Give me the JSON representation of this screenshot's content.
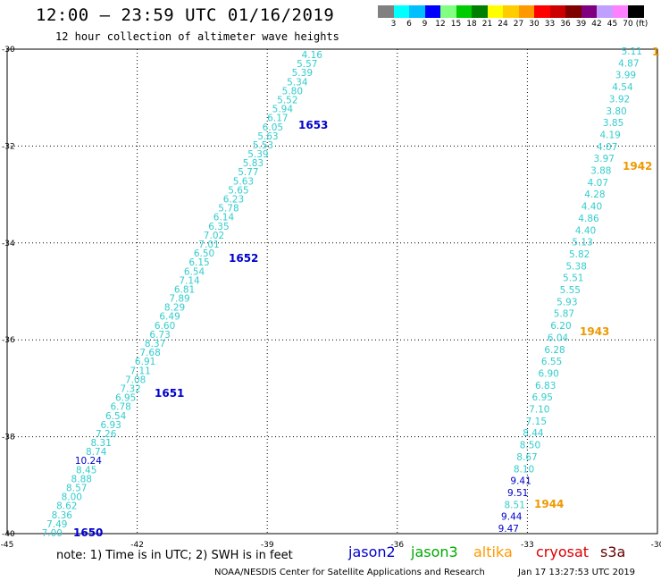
{
  "header": {
    "title": "12:00 – 23:59 UTC 01/16/2019",
    "subtitle": "12 hour collection of altimeter wave heights"
  },
  "scale": {
    "colors": [
      "#808080",
      "#00ffff",
      "#00bfff",
      "#0000ff",
      "#80ff80",
      "#00cc00",
      "#008000",
      "#ffff00",
      "#ffcc00",
      "#ff9900",
      "#ff0000",
      "#cc0000",
      "#800000",
      "#800080",
      "#c0a0ff",
      "#ff80ff",
      "#000000"
    ],
    "labels": [
      "3",
      "6",
      "9",
      "12",
      "15",
      "18",
      "21",
      "24",
      "27",
      "30",
      "33",
      "36",
      "39",
      "42",
      "45",
      "70",
      "(ft)"
    ]
  },
  "axes": {
    "lon_ticks": [
      "-45",
      "-42",
      "-39",
      "-36",
      "-33",
      "-30"
    ],
    "lat_ticks": [
      "-30",
      "-32",
      "-34",
      "-36",
      "-38",
      "-40"
    ]
  },
  "tracks": [
    {
      "name": "west",
      "color": "#33cccc",
      "values": [
        {
          "t": "4.16",
          "c": "#33cccc"
        },
        {
          "t": "5.57",
          "c": "#33cccc"
        },
        {
          "t": "5.39",
          "c": "#33cccc"
        },
        {
          "t": "5.34",
          "c": "#33cccc"
        },
        {
          "t": "5.80",
          "c": "#33cccc"
        },
        {
          "t": "5.52",
          "c": "#33cccc"
        },
        {
          "t": "5.94",
          "c": "#33cccc"
        },
        {
          "t": "6.17",
          "c": "#33cccc"
        },
        {
          "t": "6.05",
          "c": "#33cccc"
        },
        {
          "t": "5.63",
          "c": "#33cccc"
        },
        {
          "t": "5.53",
          "c": "#33cccc"
        },
        {
          "t": "5.39",
          "c": "#33cccc"
        },
        {
          "t": "5.83",
          "c": "#33cccc"
        },
        {
          "t": "5.77",
          "c": "#33cccc"
        },
        {
          "t": "5.63",
          "c": "#33cccc"
        },
        {
          "t": "5.65",
          "c": "#33cccc"
        },
        {
          "t": "6.23",
          "c": "#33cccc"
        },
        {
          "t": "5.78",
          "c": "#33cccc"
        },
        {
          "t": "6.14",
          "c": "#33cccc"
        },
        {
          "t": "6.35",
          "c": "#33cccc"
        },
        {
          "t": "7.02",
          "c": "#33cccc"
        },
        {
          "t": "7.01",
          "c": "#33cccc"
        },
        {
          "t": "6.50",
          "c": "#33cccc"
        },
        {
          "t": "6.15",
          "c": "#33cccc"
        },
        {
          "t": "6.54",
          "c": "#33cccc"
        },
        {
          "t": "7.14",
          "c": "#33cccc"
        },
        {
          "t": "6.81",
          "c": "#33cccc"
        },
        {
          "t": "7.89",
          "c": "#33cccc"
        },
        {
          "t": "8.29",
          "c": "#33cccc"
        },
        {
          "t": "6.49",
          "c": "#33cccc"
        },
        {
          "t": "6.60",
          "c": "#33cccc"
        },
        {
          "t": "6.73",
          "c": "#33cccc"
        },
        {
          "t": "8.37",
          "c": "#33cccc"
        },
        {
          "t": "7.68",
          "c": "#33cccc"
        },
        {
          "t": "6.91",
          "c": "#33cccc"
        },
        {
          "t": "7.11",
          "c": "#33cccc"
        },
        {
          "t": "7.08",
          "c": "#33cccc"
        },
        {
          "t": "7.32",
          "c": "#33cccc"
        },
        {
          "t": "6.95",
          "c": "#33cccc"
        },
        {
          "t": "6.78",
          "c": "#33cccc"
        },
        {
          "t": "6.54",
          "c": "#33cccc"
        },
        {
          "t": "6.93",
          "c": "#33cccc"
        },
        {
          "t": "7.26",
          "c": "#33cccc"
        },
        {
          "t": "8.31",
          "c": "#33cccc"
        },
        {
          "t": "8.74",
          "c": "#33cccc"
        },
        {
          "t": "10.24",
          "c": "#0000cc"
        },
        {
          "t": "8.45",
          "c": "#33cccc"
        },
        {
          "t": "8.88",
          "c": "#33cccc"
        },
        {
          "t": "8.57",
          "c": "#33cccc"
        },
        {
          "t": "8.00",
          "c": "#33cccc"
        },
        {
          "t": "8.62",
          "c": "#33cccc"
        },
        {
          "t": "8.36",
          "c": "#33cccc"
        },
        {
          "t": "7.49",
          "c": "#33cccc"
        },
        {
          "t": "7.00",
          "c": "#33cccc"
        }
      ],
      "times": [
        {
          "t": "1653",
          "c": "#0000cc"
        },
        {
          "t": "1652",
          "c": "#0000cc"
        },
        {
          "t": "1651",
          "c": "#0000cc"
        },
        {
          "t": "1650",
          "c": "#0000cc"
        }
      ]
    },
    {
      "name": "east",
      "color": "#33cccc",
      "values": [
        {
          "t": "5.11",
          "c": "#33cccc"
        },
        {
          "t": "4.87",
          "c": "#33cccc"
        },
        {
          "t": "3.99",
          "c": "#33cccc"
        },
        {
          "t": "4.54",
          "c": "#33cccc"
        },
        {
          "t": "3.92",
          "c": "#33cccc"
        },
        {
          "t": "3.80",
          "c": "#33cccc"
        },
        {
          "t": "3.85",
          "c": "#33cccc"
        },
        {
          "t": "4.19",
          "c": "#33cccc"
        },
        {
          "t": "4.07",
          "c": "#33cccc"
        },
        {
          "t": "3.97",
          "c": "#33cccc"
        },
        {
          "t": "3.88",
          "c": "#33cccc"
        },
        {
          "t": "4.07",
          "c": "#33cccc"
        },
        {
          "t": "4.28",
          "c": "#33cccc"
        },
        {
          "t": "4.40",
          "c": "#33cccc"
        },
        {
          "t": "4.86",
          "c": "#33cccc"
        },
        {
          "t": "4.40",
          "c": "#33cccc"
        },
        {
          "t": "5.13",
          "c": "#33cccc"
        },
        {
          "t": "5.82",
          "c": "#33cccc"
        },
        {
          "t": "5.38",
          "c": "#33cccc"
        },
        {
          "t": "5.51",
          "c": "#33cccc"
        },
        {
          "t": "5.55",
          "c": "#33cccc"
        },
        {
          "t": "5.93",
          "c": "#33cccc"
        },
        {
          "t": "5.87",
          "c": "#33cccc"
        },
        {
          "t": "6.20",
          "c": "#33cccc"
        },
        {
          "t": "6.04",
          "c": "#33cccc"
        },
        {
          "t": "6.28",
          "c": "#33cccc"
        },
        {
          "t": "6.55",
          "c": "#33cccc"
        },
        {
          "t": "6.90",
          "c": "#33cccc"
        },
        {
          "t": "6.83",
          "c": "#33cccc"
        },
        {
          "t": "6.95",
          "c": "#33cccc"
        },
        {
          "t": "7.10",
          "c": "#33cccc"
        },
        {
          "t": "7.15",
          "c": "#33cccc"
        },
        {
          "t": "8.44",
          "c": "#33cccc"
        },
        {
          "t": "8.50",
          "c": "#33cccc"
        },
        {
          "t": "8.67",
          "c": "#33cccc"
        },
        {
          "t": "8.10",
          "c": "#33cccc"
        },
        {
          "t": "9.41",
          "c": "#0000cc"
        },
        {
          "t": "9.51",
          "c": "#0000cc"
        },
        {
          "t": "8.51",
          "c": "#33cccc"
        },
        {
          "t": "9.44",
          "c": "#0000cc"
        },
        {
          "t": "9.47",
          "c": "#0000cc"
        }
      ],
      "times": [
        {
          "t": "1",
          "c": "#ee9900"
        },
        {
          "t": "1942",
          "c": "#ee9900"
        },
        {
          "t": "1943",
          "c": "#ee9900"
        },
        {
          "t": "1944",
          "c": "#ee9900"
        }
      ]
    }
  ],
  "footer": {
    "note": "note: 1) Time is in UTC; 2) SWH is in feet",
    "satellites": [
      {
        "name": "jason2",
        "color": "#0000cc"
      },
      {
        "name": "jason3",
        "color": "#00aa00"
      },
      {
        "name": "altika",
        "color": "#ff9900"
      },
      {
        "name": "cryosat",
        "color": "#dd0000"
      },
      {
        "name": "s3a",
        "color": "#660000"
      }
    ],
    "credit": "NOAA/NESDIS Center for Satellite Applications and Research",
    "timestamp": "Jan 17 13:27:53 UTC 2019"
  }
}
